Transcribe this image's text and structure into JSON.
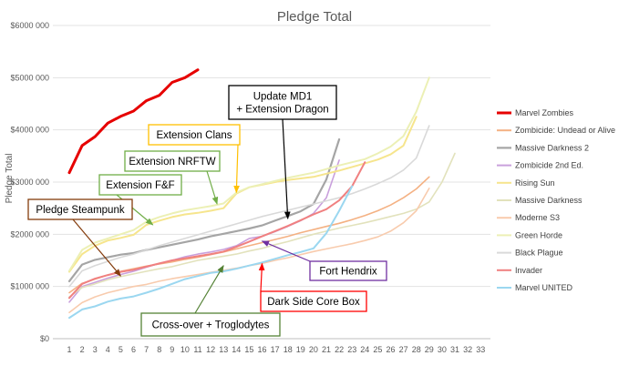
{
  "chart_data": {
    "type": "line",
    "title": "Pledge Total",
    "ylabel": "Pledge Total",
    "xlabel": "",
    "ylim": [
      0,
      6000000
    ],
    "xlim": [
      1,
      33
    ],
    "y_ticks": [
      0,
      1000000,
      2000000,
      3000000,
      4000000,
      5000000,
      6000000
    ],
    "y_tick_labels": [
      "$0",
      "$1000 000",
      "$2000 000",
      "$3000 000",
      "$4000 000",
      "$5000 000",
      "$6000 000"
    ],
    "x_ticks": [
      1,
      2,
      3,
      4,
      5,
      6,
      7,
      8,
      9,
      10,
      11,
      12,
      13,
      14,
      15,
      16,
      17,
      18,
      19,
      20,
      21,
      22,
      23,
      24,
      25,
      26,
      27,
      28,
      29,
      30,
      31,
      32,
      33
    ],
    "grid": "horizontal",
    "legend_position": "right",
    "series": [
      {
        "name": "Marvel Zombies",
        "color": "#e60000",
        "width": 3,
        "x": [
          1,
          2,
          3,
          4,
          5,
          6,
          7,
          8,
          9,
          10,
          11
        ],
        "values": [
          3180000,
          3700000,
          3870000,
          4130000,
          4260000,
          4360000,
          4560000,
          4660000,
          4910000,
          5000000,
          5150000
        ]
      },
      {
        "name": "Zombicide: Undead or Alive",
        "color": "#f4b183",
        "width": 1.6,
        "x": [
          1,
          2,
          3,
          4,
          5,
          6,
          7,
          8,
          9,
          10,
          11,
          12,
          13,
          14,
          15,
          16,
          17,
          18,
          19,
          20,
          21,
          22,
          23,
          24,
          25,
          26,
          27,
          28,
          29
        ],
        "values": [
          880000,
          1060000,
          1140000,
          1220000,
          1290000,
          1340000,
          1390000,
          1430000,
          1470000,
          1520000,
          1560000,
          1610000,
          1660000,
          1720000,
          1780000,
          1840000,
          1900000,
          1960000,
          2030000,
          2090000,
          2150000,
          2210000,
          2280000,
          2360000,
          2450000,
          2560000,
          2700000,
          2870000,
          3100000
        ]
      },
      {
        "name": "Massive Darkness 2",
        "color": "#a5a5a5",
        "width": 2.2,
        "x": [
          1,
          2,
          3,
          4,
          5,
          6,
          7,
          8,
          9,
          10,
          11,
          12,
          13,
          14,
          15,
          16,
          17,
          18,
          19,
          20,
          21,
          22
        ],
        "values": [
          1100000,
          1420000,
          1510000,
          1560000,
          1610000,
          1640000,
          1700000,
          1750000,
          1800000,
          1850000,
          1900000,
          1960000,
          2010000,
          2060000,
          2110000,
          2170000,
          2260000,
          2350000,
          2440000,
          2580000,
          3050000,
          3820000
        ]
      },
      {
        "name": "Zombicide 2nd Ed.",
        "color": "#c9a0dc",
        "width": 1.6,
        "x": [
          1,
          2,
          3,
          4,
          5,
          6,
          7,
          8,
          9,
          10,
          11,
          12,
          13,
          14,
          15,
          16,
          17,
          18,
          19,
          20,
          21,
          22
        ],
        "values": [
          700000,
          1000000,
          1080000,
          1160000,
          1230000,
          1290000,
          1370000,
          1440000,
          1500000,
          1570000,
          1620000,
          1660000,
          1710000,
          1780000,
          1920000,
          1960000,
          2050000,
          2150000,
          2260000,
          2400000,
          2700000,
          3420000
        ]
      },
      {
        "name": "Rising Sun",
        "color": "#f6e58d",
        "width": 2,
        "x": [
          1,
          2,
          3,
          4,
          5,
          6,
          7,
          8,
          9,
          10,
          11,
          12,
          13,
          14,
          15,
          16,
          17,
          18,
          19,
          20,
          21,
          22,
          23,
          24,
          25,
          26,
          27,
          28
        ],
        "values": [
          1280000,
          1620000,
          1780000,
          1880000,
          1930000,
          1990000,
          2180000,
          2260000,
          2330000,
          2380000,
          2410000,
          2450000,
          2500000,
          2780000,
          2900000,
          2950000,
          3000000,
          3040000,
          3070000,
          3100000,
          3160000,
          3220000,
          3290000,
          3360000,
          3430000,
          3530000,
          3700000,
          4250000
        ]
      },
      {
        "name": "Massive Darkness",
        "color": "#e2e2bc",
        "width": 1.6,
        "x": [
          1,
          2,
          3,
          4,
          5,
          6,
          7,
          8,
          9,
          10,
          11,
          12,
          13,
          14,
          15,
          16,
          17,
          18,
          19,
          20,
          21,
          22,
          23,
          24,
          25,
          26,
          27,
          28,
          29,
          30,
          31
        ],
        "values": [
          800000,
          980000,
          1050000,
          1130000,
          1190000,
          1240000,
          1290000,
          1340000,
          1380000,
          1440000,
          1500000,
          1540000,
          1580000,
          1620000,
          1680000,
          1730000,
          1800000,
          1860000,
          1930000,
          2000000,
          2060000,
          2120000,
          2170000,
          2220000,
          2280000,
          2340000,
          2400000,
          2480000,
          2620000,
          3000000,
          3550000
        ]
      },
      {
        "name": "Moderne S3",
        "color": "#f8cbad",
        "width": 1.6,
        "x": [
          1,
          2,
          3,
          4,
          5,
          6,
          7,
          8,
          9,
          10,
          11,
          12,
          13,
          14,
          15,
          16,
          17,
          18,
          19,
          20,
          21,
          22,
          23,
          24,
          25,
          26,
          27,
          28,
          29
        ],
        "values": [
          500000,
          690000,
          800000,
          880000,
          940000,
          1000000,
          1040000,
          1100000,
          1150000,
          1190000,
          1230000,
          1270000,
          1310000,
          1350000,
          1400000,
          1440000,
          1500000,
          1550000,
          1610000,
          1670000,
          1720000,
          1770000,
          1820000,
          1880000,
          1950000,
          2060000,
          2220000,
          2450000,
          2880000
        ]
      },
      {
        "name": "Green Horde",
        "color": "#ecf0b5",
        "width": 2,
        "x": [
          1,
          2,
          3,
          4,
          5,
          6,
          7,
          8,
          9,
          10,
          11,
          12,
          13,
          14,
          15,
          16,
          17,
          18,
          19,
          20,
          21,
          22,
          23,
          24,
          25,
          26,
          27,
          28,
          29
        ],
        "values": [
          1300000,
          1700000,
          1840000,
          1920000,
          2000000,
          2080000,
          2240000,
          2330000,
          2400000,
          2460000,
          2500000,
          2540000,
          2590000,
          2800000,
          2900000,
          2960000,
          3020000,
          3080000,
          3130000,
          3180000,
          3250000,
          3320000,
          3380000,
          3440000,
          3550000,
          3680000,
          3880000,
          4350000,
          5000000
        ]
      },
      {
        "name": "Black Plague",
        "color": "#d9d9d9",
        "width": 1.6,
        "x": [
          1,
          2,
          3,
          4,
          5,
          6,
          7,
          8,
          9,
          10,
          11,
          12,
          13,
          14,
          15,
          16,
          17,
          18,
          19,
          20,
          21,
          22,
          23,
          24,
          25,
          26,
          27,
          28,
          29
        ],
        "values": [
          1000000,
          1300000,
          1400000,
          1480000,
          1560000,
          1620000,
          1700000,
          1780000,
          1850000,
          1920000,
          1990000,
          2060000,
          2130000,
          2200000,
          2270000,
          2340000,
          2400000,
          2460000,
          2520000,
          2580000,
          2640000,
          2700000,
          2780000,
          2870000,
          2970000,
          3080000,
          3230000,
          3460000,
          4080000
        ]
      },
      {
        "name": "Invader",
        "color": "#f08080",
        "width": 2,
        "x": [
          1,
          2,
          3,
          4,
          5,
          6,
          7,
          8,
          9,
          10,
          11,
          12,
          13,
          14,
          15,
          16,
          17,
          18,
          19,
          20,
          21,
          22,
          23,
          24
        ],
        "values": [
          780000,
          1050000,
          1150000,
          1220000,
          1280000,
          1320000,
          1380000,
          1440000,
          1500000,
          1540000,
          1580000,
          1620000,
          1670000,
          1760000,
          1860000,
          1960000,
          2060000,
          2160000,
          2270000,
          2380000,
          2480000,
          2650000,
          2920000,
          3380000
        ]
      },
      {
        "name": "Marvel UNITED",
        "color": "#9bd7f0",
        "width": 2,
        "x": [
          1,
          2,
          3,
          4,
          5,
          6,
          7,
          8,
          9,
          10,
          11,
          12,
          13,
          14,
          15,
          16,
          17,
          18,
          19,
          20,
          21,
          22,
          23
        ],
        "values": [
          400000,
          560000,
          620000,
          710000,
          770000,
          810000,
          880000,
          960000,
          1050000,
          1140000,
          1200000,
          1260000,
          1290000,
          1340000,
          1400000,
          1460000,
          1530000,
          1600000,
          1660000,
          1730000,
          2020000,
          2450000,
          2920000
        ]
      }
    ],
    "annotations": [
      {
        "text": [
          "Update MD1",
          "+ Extension Dragon"
        ],
        "border": "#000000",
        "arrow_to": [
          18,
          2300000
        ]
      },
      {
        "text": [
          "Extension Clans"
        ],
        "border": "#ffc000",
        "arrow_to": [
          14,
          2800000
        ]
      },
      {
        "text": [
          "Extension NRFTW"
        ],
        "border": "#70ad47",
        "arrow_to": [
          12.5,
          2580000
        ]
      },
      {
        "text": [
          "Extension F&F"
        ],
        "border": "#70ad47",
        "arrow_to": [
          7.5,
          2180000
        ]
      },
      {
        "text": [
          "Pledge Steampunk"
        ],
        "border": "#843c0c",
        "arrow_to": [
          5,
          1200000
        ]
      },
      {
        "text": [
          "Fort Hendrix"
        ],
        "border": "#7030a0",
        "arrow_to": [
          16,
          1870000
        ]
      },
      {
        "text": [
          "Dark Side Core Box"
        ],
        "border": "#ff0000",
        "arrow_to": [
          16,
          1440000
        ]
      },
      {
        "text": [
          "Cross-over + Troglodytes"
        ],
        "border": "#548235",
        "arrow_to": [
          13,
          1400000
        ]
      }
    ]
  }
}
